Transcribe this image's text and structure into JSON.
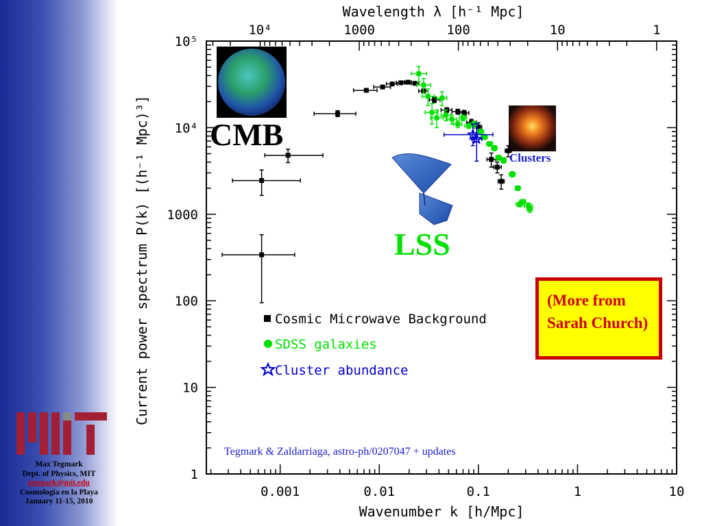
{
  "footer": {
    "name": "Max Tegmark",
    "dept": "Dept. of Physics, MIT",
    "email": "tegmark@mit.edu",
    "event": "Cosmologia en la Playa",
    "dates": "January 11-15, 2010"
  },
  "labels": {
    "cmb": "CMB",
    "lss": "LSS",
    "clusters": "Clusters",
    "more": "(More from Sarah Church)",
    "citation": "Tegmark & Zaldarriaga, astro-ph/0207047 + updates"
  },
  "colors": {
    "cmb": "#000000",
    "sdss": "#00e000",
    "clusters": "#0000cc",
    "box_fill": "#ffff00",
    "box_border": "#c80000",
    "lss_label": "#00e000"
  },
  "chart_data": {
    "type": "scatter",
    "title": "",
    "xlabel": "Wavenumber k [h/Mpc]",
    "ylabel": "Current power spectrum P(k) [(h⁻¹ Mpc)³]",
    "top_xlabel": "Wavelength λ [h⁻¹ Mpc]",
    "xscale": "log",
    "yscale": "log",
    "xlim": [
      0.00018,
      10
    ],
    "ylim": [
      1,
      100000
    ],
    "x_ticks": [
      {
        "v": 0.001,
        "label": "0.001"
      },
      {
        "v": 0.01,
        "label": "0.01"
      },
      {
        "v": 0.1,
        "label": "0.1"
      },
      {
        "v": 1,
        "label": "1"
      },
      {
        "v": 10,
        "label": "10"
      }
    ],
    "y_ticks": [
      {
        "v": 1,
        "label": "1"
      },
      {
        "v": 10,
        "label": "10"
      },
      {
        "v": 100,
        "label": "100"
      },
      {
        "v": 1000,
        "label": "1000"
      },
      {
        "v": 10000,
        "label": "10⁴"
      },
      {
        "v": 100000,
        "label": "10⁵"
      }
    ],
    "top_ticks": [
      {
        "wl": 10000,
        "label": "10⁴"
      },
      {
        "wl": 1000,
        "label": "1000"
      },
      {
        "wl": 100,
        "label": "100"
      },
      {
        "wl": 10,
        "label": "10"
      },
      {
        "wl": 1,
        "label": "1"
      }
    ],
    "legend": [
      "Cosmic Microwave Background",
      "SDSS galaxies",
      "Cluster abundance"
    ],
    "series": [
      {
        "name": "Cosmic Microwave Background",
        "marker": "square",
        "points": [
          {
            "x": 0.00065,
            "y": 340,
            "xlo": 0.00026,
            "xhi": 0.0014,
            "ylo": 95,
            "yhi": 580
          },
          {
            "x": 0.00065,
            "y": 2450,
            "xlo": 0.00033,
            "xhi": 0.0016,
            "ylo": 1650,
            "yhi": 3250
          },
          {
            "x": 0.0012,
            "y": 4800,
            "xlo": 0.0007,
            "xhi": 0.0027,
            "ylo": 3950,
            "yhi": 5650
          },
          {
            "x": 0.0038,
            "y": 14500,
            "xlo": 0.0022,
            "xhi": 0.0058,
            "ylo": 13400,
            "yhi": 15700
          },
          {
            "x": 0.0074,
            "y": 27000,
            "xlo": 0.0055,
            "xhi": 0.0095,
            "ylo": 26000,
            "yhi": 28000
          },
          {
            "x": 0.0108,
            "y": 29500,
            "xlo": 0.0088,
            "xhi": 0.013,
            "ylo": 28500,
            "yhi": 30500
          },
          {
            "x": 0.0135,
            "y": 32000,
            "xlo": 0.0118,
            "xhi": 0.0152,
            "ylo": 31000,
            "yhi": 33000
          },
          {
            "x": 0.0165,
            "y": 33000,
            "xlo": 0.0148,
            "xhi": 0.0182,
            "ylo": 32000,
            "yhi": 34000
          },
          {
            "x": 0.0195,
            "y": 33500,
            "xlo": 0.0178,
            "xhi": 0.0212,
            "ylo": 32500,
            "yhi": 34500
          },
          {
            "x": 0.023,
            "y": 32500,
            "xlo": 0.021,
            "xhi": 0.025,
            "ylo": 31500,
            "yhi": 33500
          },
          {
            "x": 0.028,
            "y": 26500,
            "xlo": 0.025,
            "xhi": 0.031,
            "ylo": 25000,
            "yhi": 28000
          },
          {
            "x": 0.036,
            "y": 21000,
            "xlo": 0.032,
            "xhi": 0.041,
            "ylo": 19500,
            "yhi": 22500
          },
          {
            "x": 0.048,
            "y": 16000,
            "xlo": 0.042,
            "xhi": 0.054,
            "ylo": 15000,
            "yhi": 17000
          },
          {
            "x": 0.062,
            "y": 15300,
            "xlo": 0.054,
            "xhi": 0.07,
            "ylo": 14300,
            "yhi": 16300
          },
          {
            "x": 0.072,
            "y": 14800,
            "xlo": 0.064,
            "xhi": 0.08,
            "ylo": 13800,
            "yhi": 15800
          },
          {
            "x": 0.085,
            "y": 11500,
            "xlo": 0.076,
            "xhi": 0.095,
            "ylo": 10500,
            "yhi": 12500
          },
          {
            "x": 0.1,
            "y": 10200,
            "xlo": 0.092,
            "xhi": 0.108,
            "ylo": 9000,
            "yhi": 11400
          },
          {
            "x": 0.135,
            "y": 4300,
            "xlo": 0.122,
            "xhi": 0.15,
            "ylo": 3500,
            "yhi": 5100
          },
          {
            "x": 0.155,
            "y": 3500,
            "xlo": 0.142,
            "xhi": 0.17,
            "ylo": 3000,
            "yhi": 4000
          },
          {
            "x": 0.17,
            "y": 2400,
            "xlo": 0.158,
            "xhi": 0.182,
            "ylo": 1950,
            "yhi": 2850
          },
          {
            "x": 0.2,
            "y": 5400,
            "xlo": 0.186,
            "xhi": 0.216,
            "ylo": 4600,
            "yhi": 6200
          }
        ]
      },
      {
        "name": "SDSS galaxies",
        "marker": "circle",
        "points": [
          {
            "x": 0.025,
            "y": 42000,
            "xlo": 0.021,
            "xhi": 0.03,
            "ylo": 34000,
            "yhi": 51000
          },
          {
            "x": 0.028,
            "y": 31000,
            "xlo": 0.024,
            "xhi": 0.033,
            "ylo": 25000,
            "yhi": 37000
          },
          {
            "x": 0.031,
            "y": 23000,
            "xlo": 0.027,
            "xhi": 0.036,
            "ylo": 18000,
            "yhi": 28000
          },
          {
            "x": 0.034,
            "y": 15000,
            "xlo": 0.029,
            "xhi": 0.039,
            "ylo": 11000,
            "yhi": 19000
          },
          {
            "x": 0.038,
            "y": 13000,
            "xlo": 0.033,
            "xhi": 0.044,
            "ylo": 10000,
            "yhi": 16000
          },
          {
            "x": 0.043,
            "y": 22000,
            "xlo": 0.038,
            "xhi": 0.048,
            "ylo": 18000,
            "yhi": 26000
          },
          {
            "x": 0.047,
            "y": 14000,
            "xlo": 0.042,
            "xhi": 0.053,
            "ylo": 12000,
            "yhi": 16000
          },
          {
            "x": 0.054,
            "y": 12500,
            "xlo": 0.048,
            "xhi": 0.06,
            "ylo": 11000,
            "yhi": 14000
          },
          {
            "x": 0.062,
            "y": 11000,
            "xlo": 0.056,
            "xhi": 0.068,
            "ylo": 10000,
            "yhi": 12000
          },
          {
            "x": 0.07,
            "y": 13000,
            "xlo": 0.064,
            "xhi": 0.076,
            "ylo": 12000,
            "yhi": 14000
          },
          {
            "x": 0.08,
            "y": 10500,
            "xlo": 0.073,
            "xhi": 0.087,
            "ylo": 9800,
            "yhi": 11200
          },
          {
            "x": 0.09,
            "y": 11000,
            "xlo": 0.083,
            "xhi": 0.097,
            "ylo": 10200,
            "yhi": 11800
          },
          {
            "x": 0.105,
            "y": 9000,
            "xlo": 0.097,
            "xhi": 0.113,
            "ylo": 8400,
            "yhi": 9600
          },
          {
            "x": 0.115,
            "y": 7800,
            "xlo": 0.107,
            "xhi": 0.123,
            "ylo": 7300,
            "yhi": 8300
          },
          {
            "x": 0.13,
            "y": 6500,
            "xlo": 0.121,
            "xhi": 0.139,
            "ylo": 6100,
            "yhi": 6900
          },
          {
            "x": 0.145,
            "y": 5800,
            "xlo": 0.136,
            "xhi": 0.154,
            "ylo": 5400,
            "yhi": 6200
          },
          {
            "x": 0.16,
            "y": 4500,
            "xlo": 0.15,
            "xhi": 0.17,
            "ylo": 4200,
            "yhi": 4800
          },
          {
            "x": 0.18,
            "y": 4200,
            "xlo": 0.17,
            "xhi": 0.19,
            "ylo": 3900,
            "yhi": 4500
          },
          {
            "x": 0.22,
            "y": 2900,
            "xlo": 0.205,
            "xhi": 0.235,
            "ylo": 2700,
            "yhi": 3100
          },
          {
            "x": 0.25,
            "y": 2000,
            "xlo": 0.235,
            "xhi": 0.265,
            "ylo": 1880,
            "yhi": 2120
          },
          {
            "x": 0.26,
            "y": 1300,
            "xlo": 0.24,
            "xhi": 0.28,
            "ylo": 1220,
            "yhi": 1380
          },
          {
            "x": 0.28,
            "y": 1400,
            "xlo": 0.26,
            "xhi": 0.3,
            "ylo": 1320,
            "yhi": 1480
          },
          {
            "x": 0.32,
            "y": 1250,
            "xlo": 0.29,
            "xhi": 0.35,
            "ylo": 1150,
            "yhi": 1350
          },
          {
            "x": 0.33,
            "y": 1150,
            "xlo": 0.31,
            "xhi": 0.35,
            "ylo": 1050,
            "yhi": 1250
          }
        ]
      },
      {
        "name": "Cluster abundance",
        "marker": "star",
        "points": [
          {
            "x": 0.088,
            "y": 8300,
            "xlo": 0.045,
            "xhi": 0.14,
            "ylo": 6200,
            "yhi": 11000
          },
          {
            "x": 0.096,
            "y": 7400,
            "xlo": 0.085,
            "xhi": 0.108,
            "ylo": 4100,
            "yhi": 11200
          }
        ]
      }
    ]
  }
}
